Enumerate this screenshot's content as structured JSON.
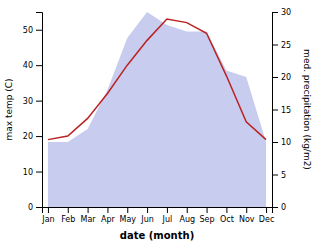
{
  "chart_data": {
    "type": "line",
    "categories": [
      "Jan",
      "Feb",
      "Mar",
      "Apr",
      "May",
      "Jun",
      "Jul",
      "Aug",
      "Sep",
      "Oct",
      "Nov",
      "Dec"
    ],
    "xlabel": "date (month)",
    "ylabel": "max temp (C)",
    "y2label": "med. precipitation (kg/m2)",
    "series": [
      {
        "type": "area",
        "axis": "y2",
        "color": "#c8ccee",
        "values": [
          10,
          10,
          12,
          18,
          26,
          30,
          28,
          27,
          27,
          21,
          20,
          10
        ]
      },
      {
        "type": "line",
        "color": "#bb2222",
        "values": [
          19,
          20,
          25,
          32,
          40,
          47,
          53,
          52,
          49,
          37,
          24,
          19
        ]
      }
    ],
    "ylim": [
      0,
      55
    ],
    "yticks": [
      0,
      10,
      20,
      30,
      40,
      50
    ],
    "y2lim": [
      0,
      30
    ],
    "y2ticks": [
      0,
      5,
      10,
      15,
      20,
      25,
      30
    ],
    "grid": false
  }
}
